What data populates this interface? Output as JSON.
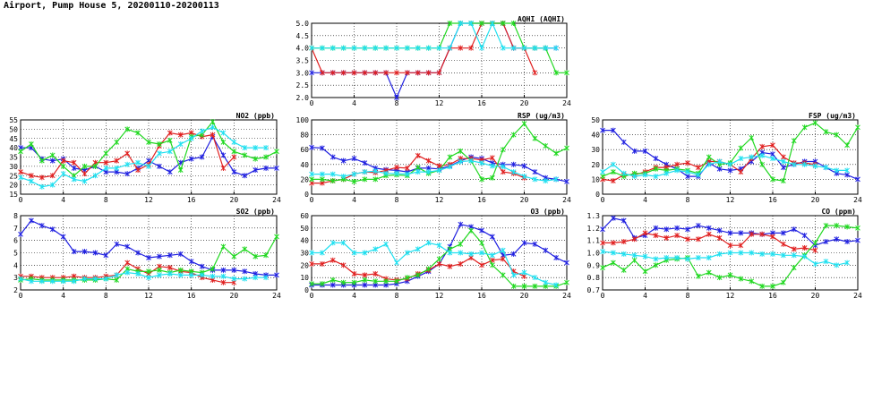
{
  "page": {
    "title": "Airport, Pump House 5, 20200110-20200113"
  },
  "colors": {
    "series": [
      "#2020e0",
      "#e02020",
      "#20d820",
      "#20e0f0"
    ],
    "grid": "#000000"
  },
  "chart_data": [
    {
      "id": "aqhi",
      "type": "line",
      "title": "AQHI (AQHI)",
      "x": [
        0,
        1,
        2,
        3,
        4,
        5,
        6,
        7,
        8,
        9,
        10,
        11,
        12,
        13,
        14,
        15,
        16,
        17,
        18,
        19,
        20,
        21,
        22,
        23,
        24
      ],
      "xlim": [
        0,
        24
      ],
      "xticks": [
        0,
        4,
        8,
        12,
        16,
        20,
        24
      ],
      "ylim": [
        2.0,
        5.0
      ],
      "yticks": [
        "2.0",
        "2.5",
        "3.0",
        "3.5",
        "4.0",
        "4.5",
        "5.0"
      ],
      "grid": true,
      "series": [
        {
          "values": [
            3,
            3,
            3,
            3,
            3,
            3,
            3,
            3,
            2,
            3,
            3,
            3,
            3,
            4,
            5,
            5,
            5,
            5,
            5,
            4,
            4,
            4,
            4,
            4,
            null
          ]
        },
        {
          "values": [
            4,
            3,
            3,
            3,
            3,
            3,
            3,
            3,
            3,
            3,
            3,
            3,
            3,
            4,
            4,
            4,
            5,
            5,
            5,
            4,
            4,
            3,
            null,
            null,
            null
          ]
        },
        {
          "values": [
            4,
            4,
            4,
            4,
            4,
            4,
            4,
            4,
            4,
            4,
            4,
            4,
            4,
            5,
            5,
            5,
            5,
            5,
            5,
            5,
            4,
            4,
            4,
            3,
            3
          ]
        },
        {
          "values": [
            4,
            4,
            4,
            4,
            4,
            4,
            4,
            4,
            4,
            4,
            4,
            4,
            4,
            4,
            5,
            5,
            4,
            5,
            4,
            4,
            4,
            4,
            4,
            4,
            null
          ]
        }
      ]
    },
    {
      "id": "no2",
      "type": "line",
      "title": "NO2 (ppb)",
      "x": [
        0,
        1,
        2,
        3,
        4,
        5,
        6,
        7,
        8,
        9,
        10,
        11,
        12,
        13,
        14,
        15,
        16,
        17,
        18,
        19,
        20,
        21,
        22,
        23,
        24
      ],
      "xlim": [
        0,
        24
      ],
      "xticks": [
        0,
        4,
        8,
        12,
        16,
        20,
        24
      ],
      "ylim": [
        15,
        55
      ],
      "yticks": [
        "15",
        "20",
        "25",
        "30",
        "35",
        "40",
        "45",
        "50",
        "55"
      ],
      "grid": true,
      "series": [
        {
          "values": [
            40,
            40,
            34,
            33,
            34,
            29,
            28,
            30,
            27,
            27,
            26,
            29,
            33,
            30,
            27,
            32,
            34,
            35,
            46,
            36,
            27,
            25,
            28,
            29,
            29
          ]
        },
        {
          "values": [
            27,
            25,
            24,
            25,
            33,
            32,
            26,
            32,
            32,
            33,
            37,
            28,
            31,
            41,
            48,
            47,
            48,
            46,
            47,
            29,
            35,
            null,
            null,
            null,
            null
          ]
        },
        {
          "values": [
            38,
            42,
            33,
            36,
            30,
            25,
            30,
            30,
            37,
            43,
            50,
            48,
            43,
            42,
            44,
            28,
            46,
            47,
            54,
            43,
            38,
            36,
            34,
            35,
            38
          ]
        },
        {
          "values": [
            24,
            22,
            19,
            20,
            26,
            23,
            22,
            25,
            29,
            29,
            31,
            32,
            30,
            37,
            38,
            42,
            45,
            49,
            51,
            48,
            43,
            40,
            40,
            40,
            null
          ]
        }
      ]
    },
    {
      "id": "rsp",
      "type": "line",
      "title": "RSP (ug/m3)",
      "x": [
        0,
        1,
        2,
        3,
        4,
        5,
        6,
        7,
        8,
        9,
        10,
        11,
        12,
        13,
        14,
        15,
        16,
        17,
        18,
        19,
        20,
        21,
        22,
        23,
        24
      ],
      "xlim": [
        0,
        24
      ],
      "xticks": [
        0,
        4,
        8,
        12,
        16,
        20,
        24
      ],
      "ylim": [
        0,
        100
      ],
      "yticks": [
        "0",
        "20",
        "40",
        "60",
        "80",
        "100"
      ],
      "grid": true,
      "series": [
        {
          "values": [
            63,
            62,
            50,
            45,
            48,
            42,
            35,
            33,
            32,
            30,
            35,
            35,
            34,
            38,
            45,
            50,
            48,
            42,
            40,
            40,
            38,
            30,
            22,
            20,
            17
          ]
        },
        {
          "values": [
            15,
            15,
            18,
            20,
            27,
            30,
            29,
            32,
            36,
            35,
            52,
            45,
            38,
            40,
            48,
            48,
            46,
            49,
            30,
            28,
            22,
            null,
            null,
            null,
            null
          ]
        },
        {
          "values": [
            20,
            20,
            18,
            20,
            17,
            20,
            20,
            25,
            26,
            25,
            36,
            28,
            32,
            50,
            58,
            45,
            20,
            22,
            60,
            80,
            95,
            75,
            65,
            55,
            62
          ]
        },
        {
          "values": [
            27,
            27,
            27,
            24,
            27,
            30,
            31,
            28,
            28,
            27,
            30,
            30,
            32,
            37,
            44,
            45,
            42,
            38,
            37,
            30,
            24,
            20,
            18,
            20,
            null
          ]
        }
      ]
    },
    {
      "id": "fsp",
      "type": "line",
      "title": "FSP (ug/m3)",
      "x": [
        0,
        1,
        2,
        3,
        4,
        5,
        6,
        7,
        8,
        9,
        10,
        11,
        12,
        13,
        14,
        15,
        16,
        17,
        18,
        19,
        20,
        21,
        22,
        23,
        24
      ],
      "xlim": [
        0,
        24
      ],
      "xticks": [
        0,
        4,
        8,
        12,
        16,
        20,
        24
      ],
      "ylim": [
        0,
        50
      ],
      "yticks": [
        "0",
        "10",
        "20",
        "30",
        "40",
        "50"
      ],
      "grid": true,
      "series": [
        {
          "values": [
            43,
            43,
            35,
            29,
            29,
            24,
            20,
            17,
            12,
            12,
            21,
            17,
            16,
            17,
            22,
            28,
            27,
            18,
            20,
            22,
            22,
            18,
            14,
            13,
            10
          ]
        },
        {
          "values": [
            10,
            9,
            13,
            13,
            15,
            18,
            18,
            20,
            21,
            18,
            22,
            22,
            20,
            15,
            24,
            32,
            33,
            25,
            21,
            21,
            20,
            null,
            null,
            null,
            null
          ]
        },
        {
          "values": [
            12,
            15,
            12,
            14,
            14,
            17,
            16,
            17,
            16,
            14,
            25,
            20,
            21,
            31,
            38,
            20,
            10,
            9,
            36,
            45,
            48,
            42,
            40,
            33,
            45
          ]
        },
        {
          "values": [
            15,
            20,
            14,
            12,
            13,
            12,
            14,
            16,
            15,
            13,
            20,
            22,
            20,
            24,
            25,
            26,
            24,
            22,
            20,
            20,
            19,
            18,
            16,
            16,
            null
          ]
        }
      ]
    },
    {
      "id": "so2",
      "type": "line",
      "title": "SO2 (ppb)",
      "x": [
        0,
        1,
        2,
        3,
        4,
        5,
        6,
        7,
        8,
        9,
        10,
        11,
        12,
        13,
        14,
        15,
        16,
        17,
        18,
        19,
        20,
        21,
        22,
        23,
        24
      ],
      "xlim": [
        0,
        24
      ],
      "xticks": [
        0,
        4,
        8,
        12,
        16,
        20,
        24
      ],
      "ylim": [
        2,
        8
      ],
      "yticks": [
        "2",
        "3",
        "4",
        "5",
        "6",
        "7",
        "8"
      ],
      "grid": true,
      "series": [
        {
          "values": [
            6.5,
            7.6,
            7.2,
            6.9,
            6.3,
            5.1,
            5.1,
            5.0,
            4.8,
            5.7,
            5.5,
            5.0,
            4.6,
            4.7,
            4.8,
            4.9,
            4.3,
            3.9,
            3.6,
            3.6,
            3.6,
            3.5,
            3.3,
            3.2,
            3.2
          ]
        },
        {
          "values": [
            3.1,
            3.1,
            3.0,
            3.0,
            3.0,
            3.1,
            3.0,
            3.0,
            3.1,
            3.2,
            4.2,
            3.7,
            3.3,
            3.9,
            3.8,
            3.5,
            3.4,
            3.0,
            2.8,
            2.6,
            2.6,
            null,
            null,
            null,
            null
          ]
        },
        {
          "values": [
            2.8,
            2.9,
            2.8,
            2.8,
            2.8,
            2.8,
            2.8,
            2.8,
            2.9,
            2.8,
            3.7,
            3.5,
            3.5,
            3.6,
            3.4,
            3.6,
            3.5,
            3.4,
            3.7,
            5.5,
            4.7,
            5.3,
            4.7,
            4.8,
            6.3
          ]
        },
        {
          "values": [
            2.9,
            2.7,
            2.7,
            2.7,
            2.7,
            2.7,
            2.9,
            2.9,
            2.9,
            3.2,
            3.4,
            3.3,
            3.0,
            3.2,
            3.3,
            3.2,
            3.2,
            3.2,
            3.1,
            3.1,
            2.9,
            2.9,
            3.0,
            3.0,
            null
          ]
        }
      ]
    },
    {
      "id": "o3",
      "type": "line",
      "title": "O3 (ppb)",
      "x": [
        0,
        1,
        2,
        3,
        4,
        5,
        6,
        7,
        8,
        9,
        10,
        11,
        12,
        13,
        14,
        15,
        16,
        17,
        18,
        19,
        20,
        21,
        22,
        23,
        24
      ],
      "xlim": [
        0,
        24
      ],
      "xticks": [
        0,
        4,
        8,
        12,
        16,
        20,
        24
      ],
      "ylim": [
        0,
        60
      ],
      "yticks": [
        "0",
        "10",
        "20",
        "30",
        "40",
        "50",
        "60"
      ],
      "grid": true,
      "series": [
        {
          "values": [
            4,
            4,
            4,
            4,
            4,
            4,
            4,
            4,
            5,
            7,
            11,
            15,
            21,
            35,
            53,
            51,
            48,
            43,
            28,
            29,
            38,
            37,
            32,
            26,
            22
          ]
        },
        {
          "values": [
            21,
            21,
            24,
            20,
            13,
            12,
            13,
            9,
            8,
            9,
            13,
            16,
            21,
            19,
            21,
            26,
            20,
            24,
            25,
            15,
            11,
            null,
            null,
            null,
            null
          ]
        },
        {
          "values": [
            5,
            5,
            8,
            6,
            6,
            8,
            7,
            7,
            7,
            10,
            12,
            17,
            25,
            33,
            37,
            48,
            38,
            20,
            12,
            3,
            3,
            3,
            3,
            3,
            6
          ]
        },
        {
          "values": [
            30,
            30,
            38,
            38,
            30,
            30,
            33,
            37,
            22,
            30,
            33,
            38,
            36,
            30,
            30,
            29,
            30,
            28,
            32,
            12,
            14,
            10,
            6,
            4,
            null
          ]
        }
      ]
    },
    {
      "id": "co",
      "type": "line",
      "title": "CO (ppm)",
      "x": [
        0,
        1,
        2,
        3,
        4,
        5,
        6,
        7,
        8,
        9,
        10,
        11,
        12,
        13,
        14,
        15,
        16,
        17,
        18,
        19,
        20,
        21,
        22,
        23,
        24
      ],
      "xlim": [
        0,
        24
      ],
      "xticks": [
        0,
        4,
        8,
        12,
        16,
        20,
        24
      ],
      "ylim": [
        0.7,
        1.3
      ],
      "yticks": [
        "0.7",
        "0.8",
        "0.9",
        "1.0",
        "1.1",
        "1.2",
        "1.3"
      ],
      "grid": true,
      "series": [
        {
          "values": [
            1.19,
            1.28,
            1.26,
            1.12,
            1.14,
            1.2,
            1.19,
            1.2,
            1.19,
            1.22,
            1.2,
            1.18,
            1.16,
            1.16,
            1.16,
            1.15,
            1.16,
            1.16,
            1.19,
            1.14,
            1.06,
            1.09,
            1.11,
            1.09,
            1.1
          ]
        },
        {
          "values": [
            1.08,
            1.08,
            1.09,
            1.11,
            1.16,
            1.14,
            1.12,
            1.14,
            1.11,
            1.11,
            1.15,
            1.12,
            1.06,
            1.06,
            1.15,
            1.15,
            1.13,
            1.07,
            1.03,
            1.04,
            1.02,
            null,
            null,
            null,
            null
          ]
        },
        {
          "values": [
            0.88,
            0.92,
            0.86,
            0.94,
            0.85,
            0.9,
            0.94,
            0.95,
            0.96,
            0.81,
            0.84,
            0.8,
            0.82,
            0.79,
            0.77,
            0.73,
            0.73,
            0.76,
            0.88,
            0.98,
            1.08,
            1.22,
            1.22,
            1.21,
            1.2
          ]
        },
        {
          "values": [
            1.01,
            1.0,
            0.99,
            0.98,
            0.97,
            0.95,
            0.96,
            0.96,
            0.95,
            0.96,
            0.96,
            0.99,
            1.0,
            1.0,
            1.0,
            0.99,
            0.99,
            0.98,
            0.98,
            0.97,
            0.91,
            0.93,
            0.9,
            0.92,
            null
          ]
        }
      ]
    }
  ]
}
